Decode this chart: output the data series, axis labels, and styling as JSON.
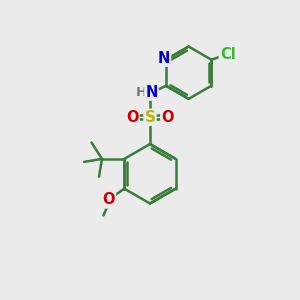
{
  "background_color": "#ebebeb",
  "atom_colors": {
    "C": "#3a7d3a",
    "N": "#0000cc",
    "O": "#cc0000",
    "S": "#b8b800",
    "Cl": "#33bb33",
    "H": "#777777"
  },
  "bond_color": "#3a7d3a",
  "figsize": [
    3.0,
    3.0
  ],
  "dpi": 100
}
